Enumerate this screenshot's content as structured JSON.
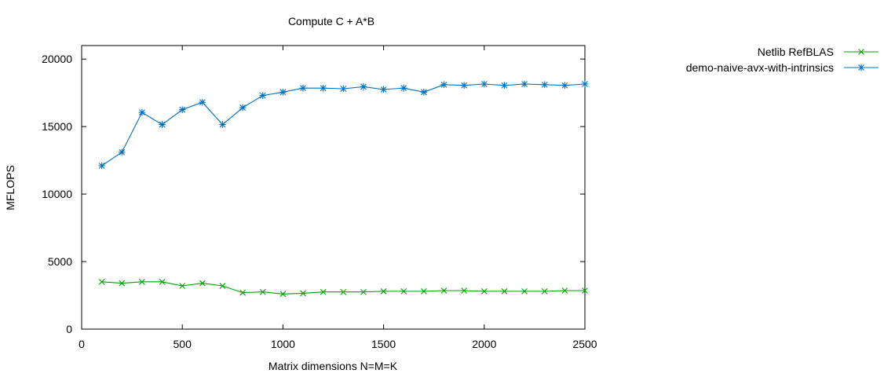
{
  "chart_data": {
    "type": "line",
    "title": "Compute C + A*B",
    "xlabel": "Matrix dimensions N=M=K",
    "ylabel": "MFLOPS",
    "xlim": [
      0,
      2500
    ],
    "ylim": [
      0,
      21000
    ],
    "xticks": [
      0,
      500,
      1000,
      1500,
      2000,
      2500
    ],
    "yticks": [
      0,
      5000,
      10000,
      15000,
      20000
    ],
    "grid": false,
    "legend_position": "outside-top-right",
    "x": [
      100,
      200,
      300,
      400,
      500,
      600,
      700,
      800,
      900,
      1000,
      1100,
      1200,
      1300,
      1400,
      1500,
      1600,
      1700,
      1800,
      1900,
      2000,
      2100,
      2200,
      2300,
      2400,
      2500
    ],
    "series": [
      {
        "name": "Netlib RefBLAS",
        "color": "#00a000",
        "marker": "x",
        "values": [
          3500,
          3400,
          3500,
          3500,
          3200,
          3400,
          3200,
          2700,
          2750,
          2600,
          2650,
          2750,
          2750,
          2750,
          2800,
          2800,
          2800,
          2850,
          2850,
          2800,
          2800,
          2800,
          2800,
          2850,
          2850
        ]
      },
      {
        "name": "demo-naive-avx-with-intrinsics",
        "color": "#0070c0",
        "marker": "asterisk",
        "values": [
          12100,
          13100,
          16050,
          15150,
          16250,
          16800,
          15150,
          16400,
          17300,
          17550,
          17850,
          17850,
          17800,
          17950,
          17750,
          17850,
          17550,
          18100,
          18050,
          18150,
          18050,
          18150,
          18100,
          18050,
          18150
        ]
      }
    ]
  }
}
